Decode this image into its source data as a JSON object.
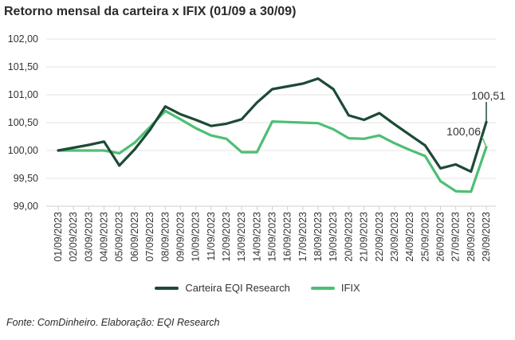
{
  "chart_data": {
    "type": "line",
    "title": "Retorno mensal da carteira x IFIX (01/09 a 30/09)",
    "xlabel": "",
    "ylabel": "",
    "ylim": [
      99.0,
      102.0
    ],
    "yticks": [
      "99,00",
      "99,50",
      "100,00",
      "100,50",
      "101,00",
      "101,50",
      "102,00"
    ],
    "ytick_values": [
      99.0,
      99.5,
      100.0,
      100.5,
      101.0,
      101.5,
      102.0
    ],
    "categories": [
      "01/09/2023",
      "02/09/2023",
      "03/09/2023",
      "04/09/2023",
      "05/09/2023",
      "06/09/2023",
      "07/09/2023",
      "08/09/2023",
      "09/09/2023",
      "10/09/2023",
      "11/09/2023",
      "12/09/2023",
      "13/09/2023",
      "14/09/2023",
      "15/09/2023",
      "16/09/2023",
      "17/09/2023",
      "18/09/2023",
      "19/09/2023",
      "20/09/2023",
      "21/09/2023",
      "22/09/2023",
      "23/09/2023",
      "24/09/2023",
      "25/09/2023",
      "26/09/2023",
      "27/09/2023",
      "28/09/2023",
      "29/09/2023"
    ],
    "series": [
      {
        "name": "Carteira EQI Research",
        "color": "#1d4a35",
        "values": [
          100.0,
          100.05,
          100.1,
          100.16,
          99.73,
          100.02,
          100.37,
          100.79,
          100.65,
          100.55,
          100.44,
          100.48,
          100.56,
          100.86,
          101.1,
          101.15,
          101.2,
          101.29,
          101.1,
          100.63,
          100.55,
          100.67,
          100.47,
          100.28,
          100.09,
          99.68,
          99.75,
          99.62,
          100.51
        ],
        "end_label": "100,51"
      },
      {
        "name": "IFIX",
        "color": "#4dbf74",
        "values": [
          100.0,
          100.0,
          100.0,
          100.0,
          99.95,
          100.14,
          100.42,
          100.71,
          100.56,
          100.4,
          100.27,
          100.21,
          99.97,
          99.97,
          100.52,
          100.51,
          100.5,
          100.49,
          100.38,
          100.22,
          100.21,
          100.27,
          100.13,
          100.01,
          99.9,
          99.45,
          99.27,
          99.26,
          100.06
        ],
        "end_label": "100,06"
      }
    ],
    "grid": true,
    "legend_position": "bottom-center"
  },
  "source_text": "Fonte: ComDinheiro. Elaboração: EQI Research"
}
